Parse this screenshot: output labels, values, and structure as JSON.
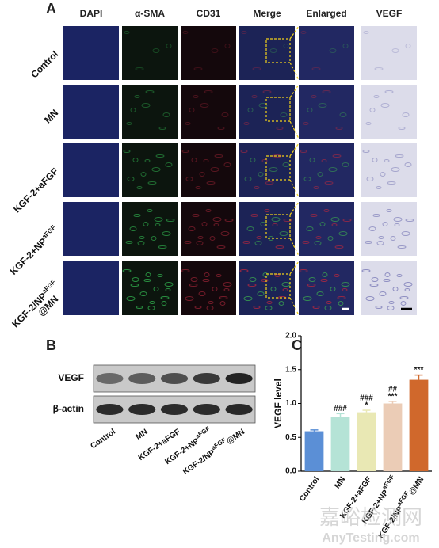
{
  "panel_a": {
    "letter": "A",
    "columns": [
      "DAPI",
      "α-SMA",
      "CD31",
      "Merge",
      "Enlarged",
      "VEGF"
    ],
    "rows": [
      {
        "label": "Control"
      },
      {
        "label": "MN"
      },
      {
        "label": "KGF-2+aFGF"
      },
      {
        "label": "KGF-2+NP",
        "sup": "aFGF"
      },
      {
        "label": "KGF-2/NP",
        "sup": "aFGF",
        "line2": "@MN"
      }
    ]
  },
  "panel_b": {
    "letter": "B",
    "bands": [
      "VEGF",
      "β-actin"
    ],
    "lanes": [
      {
        "label": "Control"
      },
      {
        "label": "MN"
      },
      {
        "label": "KGF-2+aFGF"
      },
      {
        "label": "KGF-2+NP",
        "sup": "aFGF"
      },
      {
        "label": "KGF-2/NP",
        "sup": "aFGF",
        "suffix": "@MN"
      }
    ]
  },
  "chart_data": {
    "type": "bar",
    "letter": "C",
    "y_label": "VEGF level",
    "categories": [
      "Control",
      "MN",
      "KGF-2+aFGF",
      "KGF-2+NP",
      "KGF-2/NP"
    ],
    "category_sups": [
      null,
      null,
      null,
      "aFGF",
      "aFGF"
    ],
    "category_suffixes": [
      null,
      null,
      null,
      null,
      "@MN"
    ],
    "values": [
      0.59,
      0.8,
      0.87,
      1.0,
      1.35
    ],
    "errors": [
      0.02,
      0.05,
      0.03,
      0.03,
      0.07
    ],
    "colors": [
      "#5b8fd6",
      "#b5e3d6",
      "#e9e8b4",
      "#ebccb6",
      "#d0682c"
    ],
    "annotations": [
      [],
      [
        "###"
      ],
      [
        "###",
        "*"
      ],
      [
        "##",
        "***"
      ],
      [
        "***"
      ]
    ],
    "ylim": [
      0,
      2
    ],
    "yticks": [
      {
        "value": 0,
        "label": "0.0"
      },
      {
        "value": 0.5,
        "label": "0.5"
      },
      {
        "value": 1,
        "label": "1.0"
      },
      {
        "value": 1.5,
        "label": "1.5"
      },
      {
        "value": 2,
        "label": "2.0"
      }
    ]
  },
  "watermark": {
    "cn": "嘉峪检测网",
    "en": "AnyTesting.com"
  }
}
